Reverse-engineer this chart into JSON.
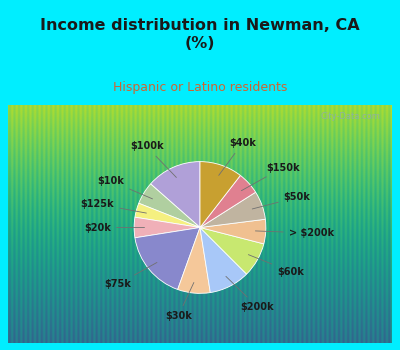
{
  "title": "Income distribution in Newman, CA\n(%)",
  "subtitle": "Hispanic or Latino residents",
  "labels": [
    "$100k",
    "$10k",
    "$125k",
    "$20k",
    "$75k",
    "$30k",
    "$200k",
    "$60k",
    "> $200k",
    "$50k",
    "$150k",
    "$40k"
  ],
  "sizes": [
    13.5,
    5.5,
    3.5,
    5.0,
    17.0,
    8.0,
    10.0,
    8.5,
    6.0,
    7.0,
    5.5,
    10.5
  ],
  "colors": [
    "#b0a0d8",
    "#b0cfa0",
    "#f5f080",
    "#f0b0b8",
    "#8888cc",
    "#f5c89a",
    "#a8c8f8",
    "#c8e870",
    "#f0c090",
    "#c0b4a0",
    "#e08090",
    "#c8a030"
  ],
  "title_color": "#1a1a1a",
  "subtitle_color": "#cc6633",
  "watermark": "City-Data.com",
  "startangle": 90,
  "outer_bg": "#00eeff",
  "chart_bg_top": "#e8f8f0",
  "chart_bg_bottom": "#c8f0e8"
}
